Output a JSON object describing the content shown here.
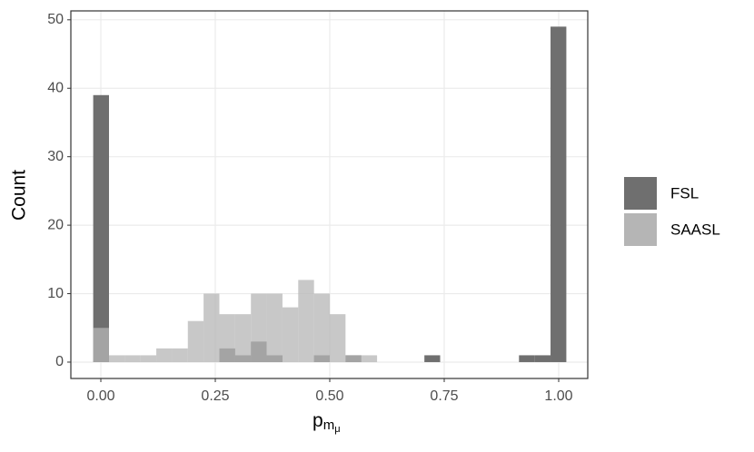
{
  "chart_data": {
    "type": "histogram",
    "x_label": {
      "base": "p",
      "sub": "m",
      "subsub": "μ"
    },
    "y_label": "Count",
    "bins": [
      -0.0167,
      0.0178,
      0.0522,
      0.0867,
      0.1211,
      0.1556,
      0.19,
      0.2244,
      0.2589,
      0.2933,
      0.3278,
      0.3622,
      0.3967,
      0.4311,
      0.4656,
      0.5,
      0.5344,
      0.5689,
      0.6033,
      0.6378,
      0.6722,
      0.7067,
      0.7411,
      0.7756,
      0.81,
      0.8444,
      0.8789,
      0.9133,
      0.9478,
      0.9822,
      1.0167
    ],
    "series": [
      {
        "name": "FSL",
        "color": "#6f6f6f",
        "values": [
          39,
          0,
          0,
          0,
          0,
          0,
          0,
          0,
          2,
          1,
          3,
          1,
          0,
          0,
          1,
          0,
          1,
          0,
          0,
          0,
          0,
          1,
          0,
          0,
          0,
          0,
          0,
          1,
          1,
          49
        ]
      },
      {
        "name": "SAASL",
        "color": "#b5b5b5",
        "values": [
          5,
          1,
          1,
          1,
          2,
          2,
          6,
          10,
          7,
          7,
          10,
          10,
          8,
          12,
          10,
          7,
          1,
          1,
          0,
          0,
          0,
          0,
          0,
          0,
          0,
          0,
          0,
          0,
          0,
          0
        ]
      }
    ],
    "xlim": [
      -0.0655,
      1.0635
    ],
    "ylim": [
      -2.39,
      51.3
    ],
    "xticks": [
      {
        "value": 0,
        "label": "0.00"
      },
      {
        "value": 0.25,
        "label": "0.25"
      },
      {
        "value": 0.5,
        "label": "0.50"
      },
      {
        "value": 0.75,
        "label": "0.75"
      },
      {
        "value": 1,
        "label": "1.00"
      }
    ],
    "yticks": [
      0,
      10,
      20,
      30,
      40,
      50
    ],
    "grid": true
  }
}
